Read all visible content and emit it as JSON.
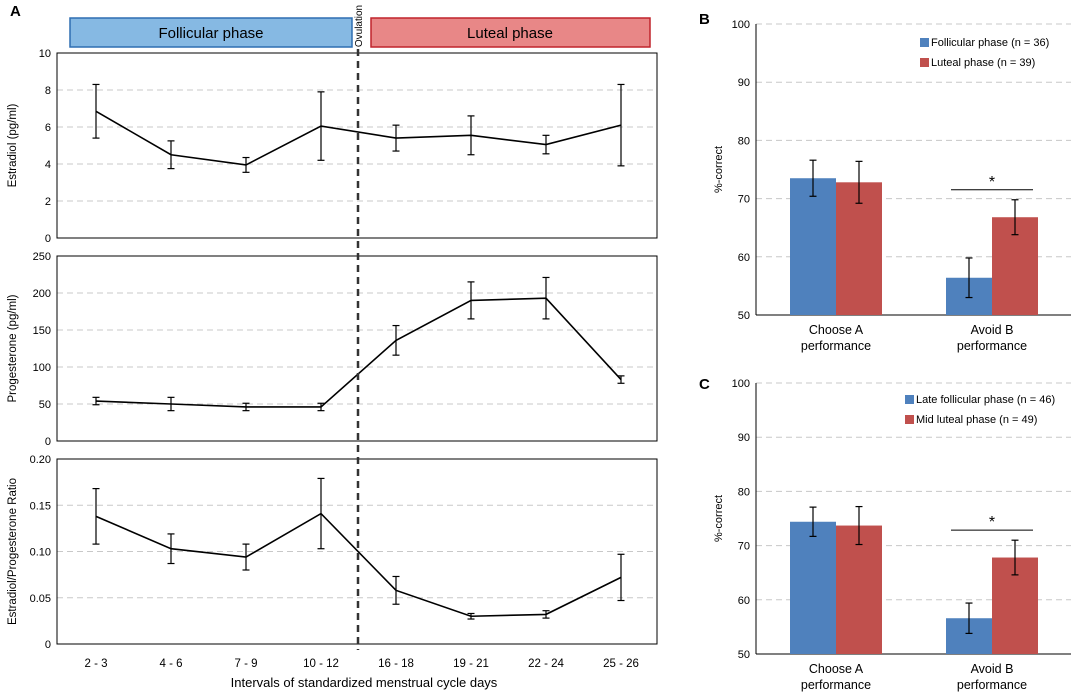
{
  "colors": {
    "follicular_fill": "#86b9e3",
    "follicular_border": "#2e6eb2",
    "luteal_fill": "#e88787",
    "luteal_border": "#c0242c",
    "bar_blue": "#4f81bd",
    "bar_red": "#c0504d",
    "grid": "#c8c8c8"
  },
  "panel_a": {
    "letter": "A",
    "follicular_label": "Follicular phase",
    "luteal_label": "Luteal phase",
    "ovulation_label": "Ovulation",
    "xlabel": "Intervals of standardized menstrual cycle days"
  },
  "panel_b": {
    "letter": "B",
    "legend": [
      "Follicular phase (n = 36)",
      "Luteal phase (n = 39)"
    ],
    "star": "*"
  },
  "panel_c": {
    "letter": "C",
    "legend": [
      "Late follicular phase (n = 46)",
      "Mid luteal phase (n = 49)"
    ],
    "star": "*"
  },
  "chart_data": [
    {
      "type": "line",
      "panel": "A-top",
      "ylabel": "Estradiol (pg/ml)",
      "categories": [
        "2 - 3",
        "4 - 6",
        "7 - 9",
        "10 - 12",
        "16 - 18",
        "19 - 21",
        "22 - 24",
        "25 - 26"
      ],
      "values": [
        6.85,
        4.5,
        3.95,
        6.05,
        5.4,
        5.55,
        5.05,
        6.1
      ],
      "errors": [
        1.45,
        0.75,
        0.4,
        1.85,
        0.7,
        1.05,
        0.5,
        2.2
      ],
      "ylim": [
        0,
        10
      ],
      "yticks": [
        0,
        2,
        4,
        6,
        8,
        10
      ],
      "ytick_labels": [
        "0",
        "2",
        "4",
        "6",
        "8",
        "10"
      ]
    },
    {
      "type": "line",
      "panel": "A-middle",
      "ylabel": "Progesterone (pg/ml)",
      "categories": [
        "2 - 3",
        "4 - 6",
        "7 - 9",
        "10 - 12",
        "16 - 18",
        "19 - 21",
        "22 - 24",
        "25 - 26"
      ],
      "values": [
        54,
        50,
        46,
        46,
        136,
        190,
        193,
        83
      ],
      "errors": [
        5,
        9,
        5,
        5,
        20,
        25,
        28,
        5
      ],
      "ylim": [
        0,
        250
      ],
      "yticks": [
        0,
        50,
        100,
        150,
        200,
        250
      ],
      "ytick_labels": [
        "0",
        "50",
        "100",
        "150",
        "200",
        "250"
      ]
    },
    {
      "type": "line",
      "panel": "A-bottom",
      "ylabel": "Estradiol/Progesterone Ratio",
      "categories": [
        "2 - 3",
        "4 - 6",
        "7 - 9",
        "10 - 12",
        "16 - 18",
        "19 - 21",
        "22 - 24",
        "25 - 26"
      ],
      "values": [
        0.138,
        0.103,
        0.094,
        0.141,
        0.058,
        0.03,
        0.032,
        0.072
      ],
      "errors": [
        0.03,
        0.016,
        0.014,
        0.038,
        0.015,
        0.003,
        0.004,
        0.025
      ],
      "ylim": [
        0,
        0.2
      ],
      "yticks": [
        0,
        0.05,
        0.1,
        0.15,
        0.2
      ],
      "ytick_labels": [
        "0",
        "0.05",
        "0.10",
        "0.15",
        "0.20"
      ]
    },
    {
      "type": "bar",
      "panel": "B",
      "ylabel": "%-correct",
      "categories": [
        "Choose A|performance",
        "Avoid B|performance"
      ],
      "series": [
        {
          "name": "Follicular phase (n = 36)",
          "values": [
            73.5,
            56.4
          ],
          "errors": [
            3.1,
            3.4
          ]
        },
        {
          "name": "Luteal phase (n = 39)",
          "values": [
            72.8,
            66.8
          ],
          "errors": [
            3.6,
            3.0
          ]
        }
      ],
      "ylim": [
        50,
        100
      ],
      "yticks": [
        50,
        60,
        70,
        80,
        90,
        100
      ],
      "ytick_labels": [
        "50",
        "60",
        "70",
        "80",
        "90",
        "100"
      ],
      "annotation": "*"
    },
    {
      "type": "bar",
      "panel": "C",
      "ylabel": "%-correct",
      "categories": [
        "Choose A|performance",
        "Avoid B|performance"
      ],
      "series": [
        {
          "name": "Late follicular phase (n = 46)",
          "values": [
            74.4,
            56.6
          ],
          "errors": [
            2.7,
            2.8
          ]
        },
        {
          "name": "Mid luteal phase (n = 49)",
          "values": [
            73.7,
            67.8
          ],
          "errors": [
            3.5,
            3.2
          ]
        }
      ],
      "ylim": [
        50,
        100
      ],
      "yticks": [
        50,
        60,
        70,
        80,
        90,
        100
      ],
      "ytick_labels": [
        "50",
        "60",
        "70",
        "80",
        "90",
        "100"
      ],
      "annotation": "*"
    }
  ]
}
